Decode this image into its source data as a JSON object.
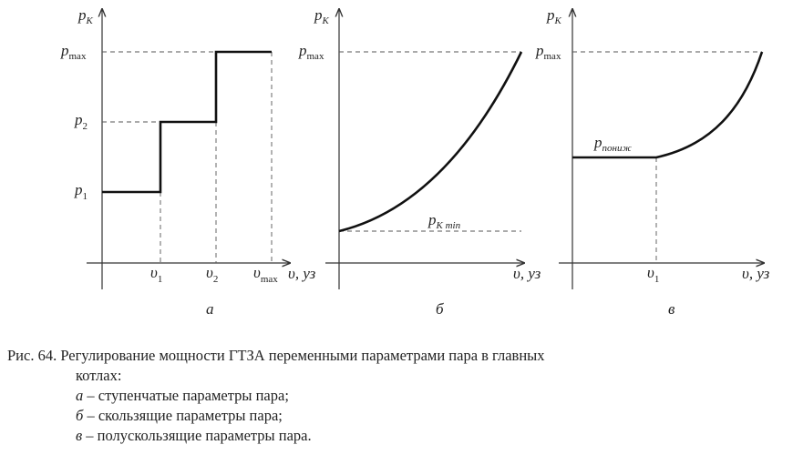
{
  "panels": [
    {
      "id": "a",
      "label": "а",
      "y_axis": {
        "var": "p",
        "sub": "К"
      },
      "x_axis": {
        "var": "υ",
        "suffix": ", уз"
      },
      "y_ticks": [
        {
          "var": "p",
          "sub": "max"
        },
        {
          "var": "p",
          "sub": "2"
        },
        {
          "var": "p",
          "sub": "1"
        }
      ],
      "x_ticks": [
        {
          "var": "υ",
          "sub": "1"
        },
        {
          "var": "υ",
          "sub": "2"
        },
        {
          "var": "υ",
          "sub": "max"
        }
      ]
    },
    {
      "id": "b",
      "label": "б",
      "y_axis": {
        "var": "p",
        "sub": "К"
      },
      "x_axis": {
        "var": "υ",
        "suffix": ", уз"
      },
      "y_ticks": [
        {
          "var": "p",
          "sub": "max"
        }
      ],
      "annotation": {
        "var": "p",
        "sub": "K min"
      }
    },
    {
      "id": "c",
      "label": "в",
      "y_axis": {
        "var": "p",
        "sub": "К"
      },
      "x_axis": {
        "var": "υ",
        "suffix": ", уз"
      },
      "y_ticks": [
        {
          "var": "p",
          "sub": "max"
        }
      ],
      "x_ticks": [
        {
          "var": "υ",
          "sub": "1"
        }
      ],
      "annotation": {
        "var": "p",
        "sub": "пониж"
      }
    }
  ],
  "caption": {
    "line1": "Рис. 64. Регулирование мощности ГТЗА переменными параметрами пара в главных",
    "line2": "котлах:",
    "items": [
      {
        "letter": "а",
        "text": " – ступенчатые параметры пара;"
      },
      {
        "letter": "б",
        "text": " – скользящие параметры пара;"
      },
      {
        "letter": "в",
        "text": " – полускользящие параметры пара."
      }
    ]
  }
}
